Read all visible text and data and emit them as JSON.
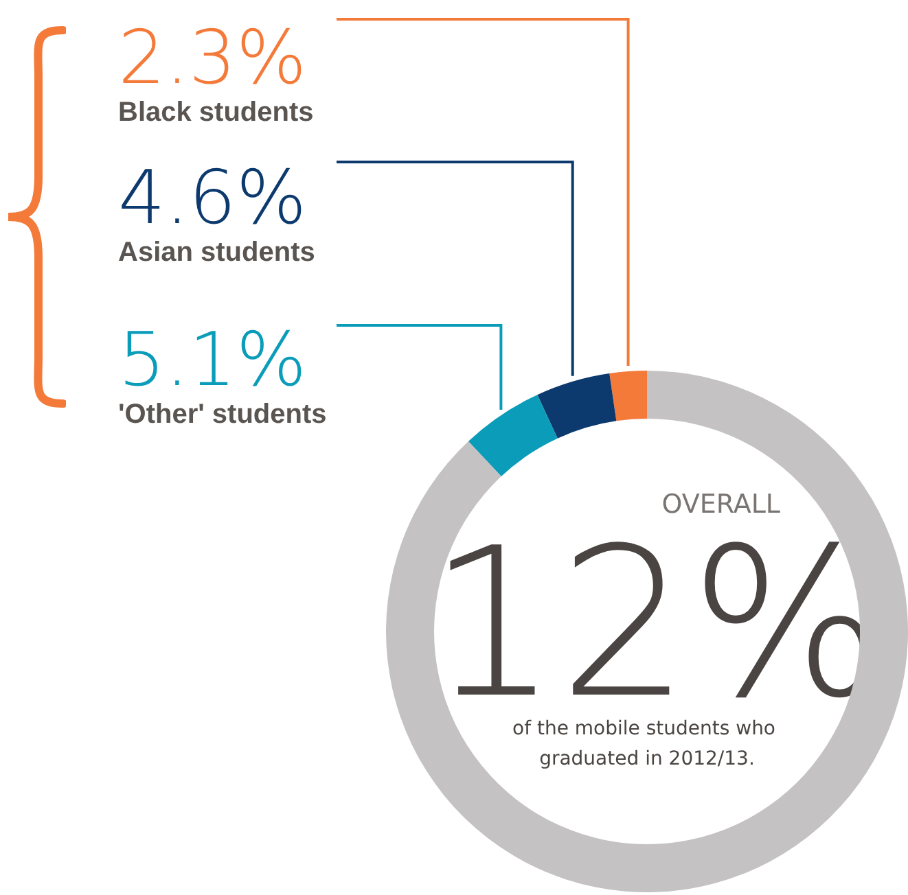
{
  "chart_data": {
    "type": "donut",
    "categories": [
      "Black students",
      "Asian students",
      "'Other' students",
      null
    ],
    "values": [
      2.3,
      4.6,
      5.1,
      88.0
    ],
    "colors": [
      "#f47a3a",
      "#0d3a6e",
      "#0a9cb8",
      "#c4c2c2"
    ],
    "value_labels": [
      "2.3%",
      "4.6%",
      "5.1%",
      null
    ],
    "annotations": [
      "OVERALL",
      "12%",
      "of the mobile students who graduated in 2012/13."
    ],
    "legend": false
  }
}
